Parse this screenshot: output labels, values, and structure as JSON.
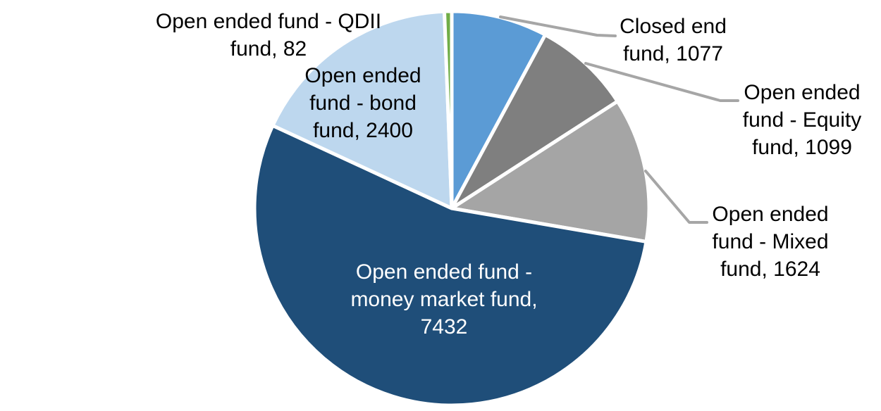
{
  "chart_data": {
    "type": "pie",
    "title": "",
    "total": 13714,
    "start_angle_deg": 0,
    "direction": "clockwise",
    "legend": "none",
    "grid": false,
    "background_color": "#FFFFFF",
    "leader_line_color": "#A6A6A6",
    "label_text_color": "#000000",
    "slices": [
      {
        "label": "Closed end fund",
        "value": 1077,
        "color": "#5B9BD5",
        "label_lines": [
          "Closed end",
          "fund, 1077"
        ],
        "label_placement": "outside-top-right",
        "leader_line": true
      },
      {
        "label": "Open ended fund - Equity fund",
        "value": 1099,
        "color": "#7F7F7F",
        "label_lines": [
          "Open ended",
          "fund - Equity",
          "fund, 1099"
        ],
        "label_placement": "outside-right",
        "leader_line": true
      },
      {
        "label": "Open ended fund - Mixed fund",
        "value": 1624,
        "color": "#A5A5A5",
        "label_lines": [
          "Open ended",
          "fund - Mixed",
          "fund, 1624"
        ],
        "label_placement": "outside-right",
        "leader_line": true
      },
      {
        "label": "Open ended fund - money market fund",
        "value": 7432,
        "color": "#1F4E79",
        "label_lines": [
          "Open ended fund -",
          "money market fund,",
          "7432"
        ],
        "label_placement": "inside",
        "label_color": "#FFFFFF",
        "leader_line": false
      },
      {
        "label": "Open ended fund - bond fund",
        "value": 2400,
        "color": "#BDD7EE",
        "label_lines": [
          "Open ended",
          "fund - bond",
          "fund, 2400"
        ],
        "label_placement": "on-slice",
        "leader_line": false
      },
      {
        "label": "Open ended fund - QDII fund",
        "value": 82,
        "color": "#70AD47",
        "label_lines": [
          "Open ended fund - QDII",
          "fund, 82"
        ],
        "label_placement": "outside-top-left",
        "leader_line": false
      }
    ]
  }
}
